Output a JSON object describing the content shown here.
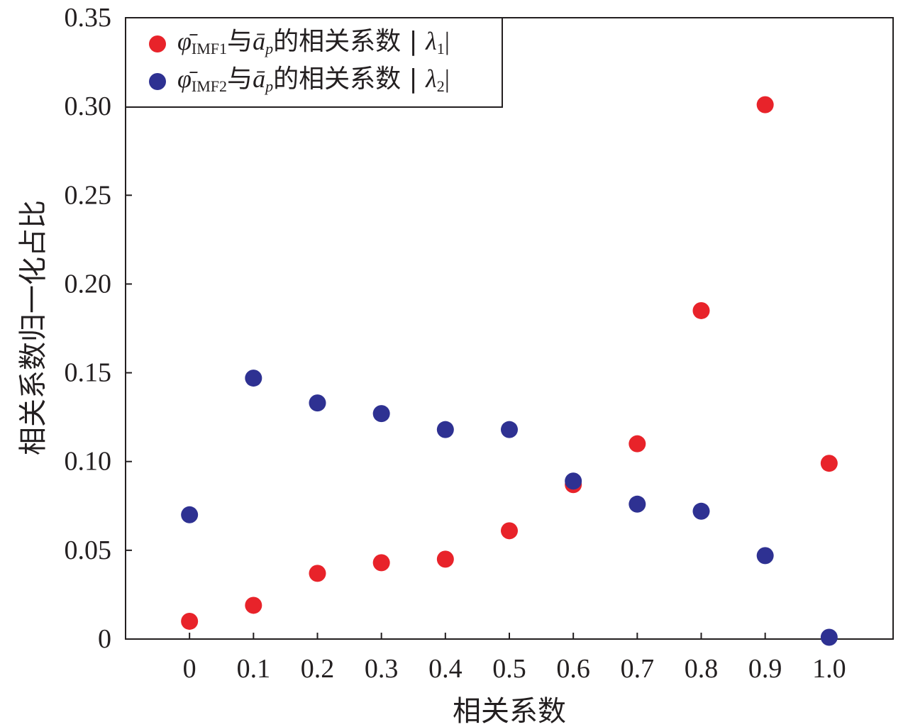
{
  "chart_data": {
    "type": "scatter",
    "title": "",
    "xlabel": "相关系数",
    "ylabel": "相关系数归一化占比",
    "xlim": [
      -0.1,
      1.1
    ],
    "ylim": [
      0,
      0.35
    ],
    "x_ticks": [
      0,
      0.1,
      0.2,
      0.3,
      0.4,
      0.5,
      0.6,
      0.7,
      0.8,
      0.9,
      1.0
    ],
    "x_tick_labels": [
      "0",
      "0.1",
      "0.2",
      "0.3",
      "0.4",
      "0.5",
      "0.6",
      "0.7",
      "0.8",
      "0.9",
      "1.0"
    ],
    "y_ticks": [
      0,
      0.05,
      0.1,
      0.15,
      0.2,
      0.25,
      0.3,
      0.35
    ],
    "y_tick_labels": [
      "0",
      "0.05",
      "0.10",
      "0.15",
      "0.20",
      "0.25",
      "0.30",
      "0.35"
    ],
    "grid": false,
    "legend_position": "top-left",
    "series": [
      {
        "name": "φ̄IMF1与āp的相关系数 | λ1|",
        "color": "#e8232a",
        "x": [
          0,
          0.1,
          0.2,
          0.3,
          0.4,
          0.5,
          0.6,
          0.7,
          0.8,
          0.9,
          1.0
        ],
        "y": [
          0.01,
          0.019,
          0.037,
          0.043,
          0.045,
          0.061,
          0.087,
          0.11,
          0.185,
          0.301,
          0.099
        ]
      },
      {
        "name": "φ̄IMF2与āp的相关系数 | λ2|",
        "color": "#2e3192",
        "x": [
          0,
          0.1,
          0.2,
          0.3,
          0.4,
          0.5,
          0.6,
          0.7,
          0.8,
          0.9,
          1.0
        ],
        "y": [
          0.07,
          0.147,
          0.133,
          0.127,
          0.118,
          0.118,
          0.089,
          0.076,
          0.072,
          0.047,
          0.001
        ]
      }
    ]
  },
  "legend": {
    "items": [
      {
        "phi": "φ̄",
        "phi_sub": "IMF1",
        "mid": "与",
        "a": "ā",
        "a_sub": "p",
        "text": "的相关系数 | ",
        "lambda": "λ",
        "lambda_sub": "1",
        "end": "|"
      },
      {
        "phi": "φ̄",
        "phi_sub": "IMF2",
        "mid": "与",
        "a": "ā",
        "a_sub": "p",
        "text": "的相关系数 | ",
        "lambda": "λ",
        "lambda_sub": "2",
        "end": "|"
      }
    ]
  }
}
